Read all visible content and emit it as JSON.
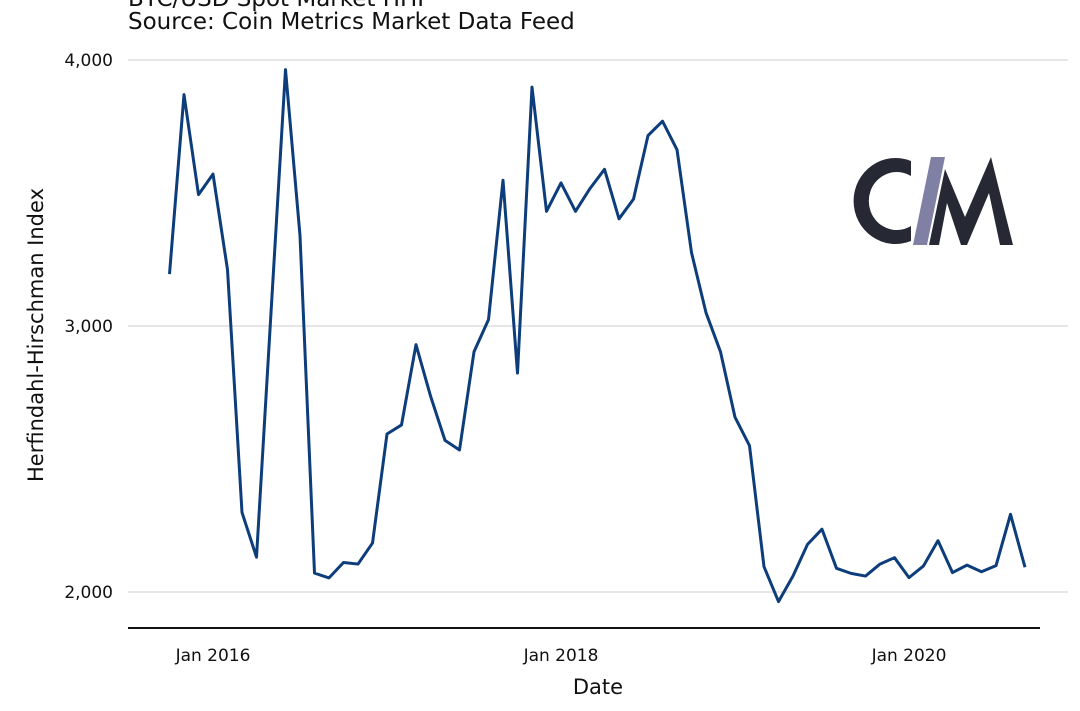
{
  "chart_data": {
    "type": "line",
    "title": "BTC/USD Spot Market HHI",
    "subtitle": "Source: Coin Metrics Market Data Feed",
    "xlabel": "Date",
    "ylabel": "Herfindahl-Hirschman Index",
    "ylim": [
      1870,
      4000
    ],
    "yticks": [
      2000,
      3000,
      4000
    ],
    "ytick_labels": [
      "2,000",
      "3,000",
      "4,000"
    ],
    "xticks": [
      "2016-01",
      "2018-01",
      "2020-01"
    ],
    "xtick_labels": [
      "Jan 2016",
      "Jan 2018",
      "Jan 2020"
    ],
    "grid": "horizontal",
    "line_color": "#0d3d7a",
    "logo_text": "CM",
    "series": [
      {
        "x": [
          "2015-10",
          "2015-11",
          "2015-12",
          "2016-01",
          "2016-02",
          "2016-03",
          "2016-04",
          "2016-05",
          "2016-06",
          "2016-07",
          "2016-08",
          "2016-09",
          "2016-10",
          "2016-11",
          "2016-12",
          "2017-01",
          "2017-02",
          "2017-03",
          "2017-04",
          "2017-05",
          "2017-06",
          "2017-07",
          "2017-08",
          "2017-09",
          "2017-10",
          "2017-11",
          "2017-12",
          "2018-01",
          "2018-02",
          "2018-03",
          "2018-04",
          "2018-05",
          "2018-06",
          "2018-07",
          "2018-08",
          "2018-09",
          "2018-10",
          "2018-11",
          "2018-12",
          "2019-01",
          "2019-02",
          "2019-03",
          "2019-04",
          "2019-05",
          "2019-06",
          "2019-07",
          "2019-08",
          "2019-09",
          "2019-10",
          "2019-11",
          "2019-12",
          "2020-01",
          "2020-02",
          "2020-03",
          "2020-04",
          "2020-05",
          "2020-06",
          "2020-07",
          "2020-08",
          "2020-09"
        ],
        "y": [
          3195,
          3870,
          3494,
          3571,
          3212,
          2299,
          2131,
          3050,
          3964,
          3340,
          2071,
          2053,
          2111,
          2105,
          2184,
          2594,
          2628,
          2930,
          2737,
          2570,
          2534,
          2903,
          3024,
          3548,
          2823,
          3898,
          3431,
          3538,
          3431,
          3517,
          3589,
          3403,
          3477,
          3716,
          3770,
          3663,
          3276,
          3050,
          2903,
          2657,
          2550,
          2095,
          1964,
          2060,
          2179,
          2236,
          2089,
          2070,
          2060,
          2105,
          2129,
          2054,
          2098,
          2193,
          2073,
          2101,
          2076,
          2099,
          2292,
          2093
        ]
      }
    ]
  }
}
